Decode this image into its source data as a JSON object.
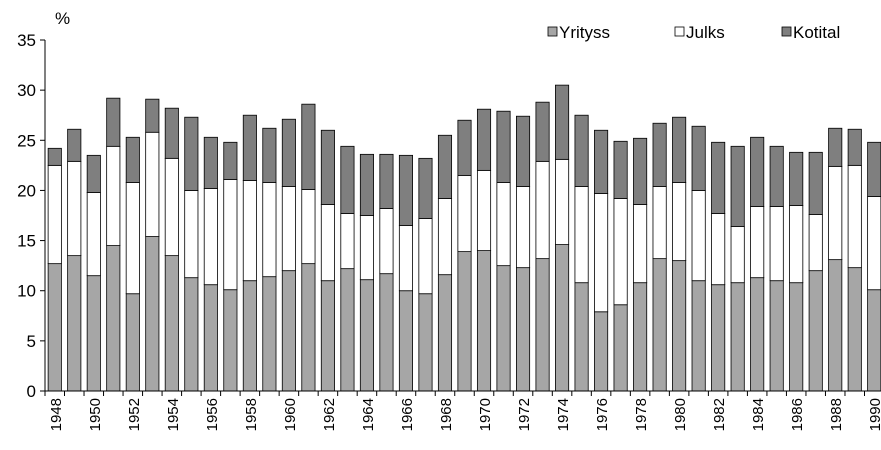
{
  "chart_data": {
    "type": "bar",
    "stacked": true,
    "unit_label": "%",
    "ylim": [
      0,
      35
    ],
    "yticks": [
      0,
      5,
      10,
      15,
      20,
      25,
      30,
      35
    ],
    "legend_position": "top-right",
    "x": [
      1948,
      1949,
      1950,
      1951,
      1952,
      1953,
      1954,
      1955,
      1956,
      1957,
      1958,
      1959,
      1960,
      1961,
      1962,
      1963,
      1964,
      1965,
      1966,
      1967,
      1968,
      1969,
      1970,
      1971,
      1972,
      1973,
      1974,
      1975,
      1976,
      1977,
      1978,
      1979,
      1980,
      1981,
      1982,
      1983,
      1984,
      1985,
      1986,
      1987,
      1988,
      1989,
      1990
    ],
    "x_tick_labels": [
      "1948",
      "1950",
      "1952",
      "1954",
      "1956",
      "1958",
      "1960",
      "1962",
      "1964",
      "1966",
      "1968",
      "1970",
      "1972",
      "1974",
      "1976",
      "1978",
      "1980",
      "1982",
      "1984",
      "1986",
      "1988",
      "1990"
    ],
    "series": [
      {
        "name": "Yrityss",
        "color": "#a6a6a6",
        "values": [
          12.7,
          13.5,
          11.5,
          14.5,
          9.7,
          15.4,
          13.5,
          11.3,
          10.6,
          10.1,
          11.0,
          11.4,
          12.0,
          12.7,
          11.0,
          12.2,
          11.1,
          11.7,
          10.0,
          9.7,
          11.6,
          13.9,
          14.0,
          12.5,
          12.3,
          13.2,
          14.6,
          10.8,
          7.9,
          8.6,
          10.8,
          13.2,
          13.0,
          11.0,
          10.6,
          10.8,
          11.3,
          11.0,
          10.8,
          12.0,
          13.1,
          12.3,
          10.1
        ]
      },
      {
        "name": "Julks",
        "color": "#ffffff",
        "values": [
          9.8,
          9.4,
          8.3,
          9.9,
          11.1,
          10.4,
          9.7,
          8.7,
          9.6,
          11.0,
          10.0,
          9.4,
          8.4,
          7.4,
          7.6,
          5.5,
          6.4,
          6.5,
          6.5,
          7.5,
          7.6,
          7.6,
          8.0,
          8.3,
          8.1,
          9.7,
          8.5,
          9.6,
          11.8,
          10.6,
          7.8,
          7.2,
          7.8,
          9.0,
          7.1,
          5.6,
          7.1,
          7.4,
          7.7,
          5.6,
          9.3,
          10.2,
          9.3
        ]
      },
      {
        "name": "Kotital",
        "color": "#7f7f7f",
        "values": [
          1.7,
          3.2,
          3.7,
          4.8,
          4.5,
          3.3,
          5.0,
          7.3,
          5.1,
          3.7,
          6.5,
          5.4,
          6.7,
          8.5,
          7.4,
          6.7,
          6.1,
          5.4,
          7.0,
          6.0,
          6.3,
          5.5,
          6.1,
          7.1,
          7.0,
          5.9,
          7.4,
          7.1,
          6.3,
          5.7,
          6.6,
          6.3,
          6.5,
          6.4,
          7.1,
          8.0,
          6.9,
          6.0,
          5.3,
          6.2,
          3.8,
          3.6,
          5.4
        ]
      }
    ]
  }
}
